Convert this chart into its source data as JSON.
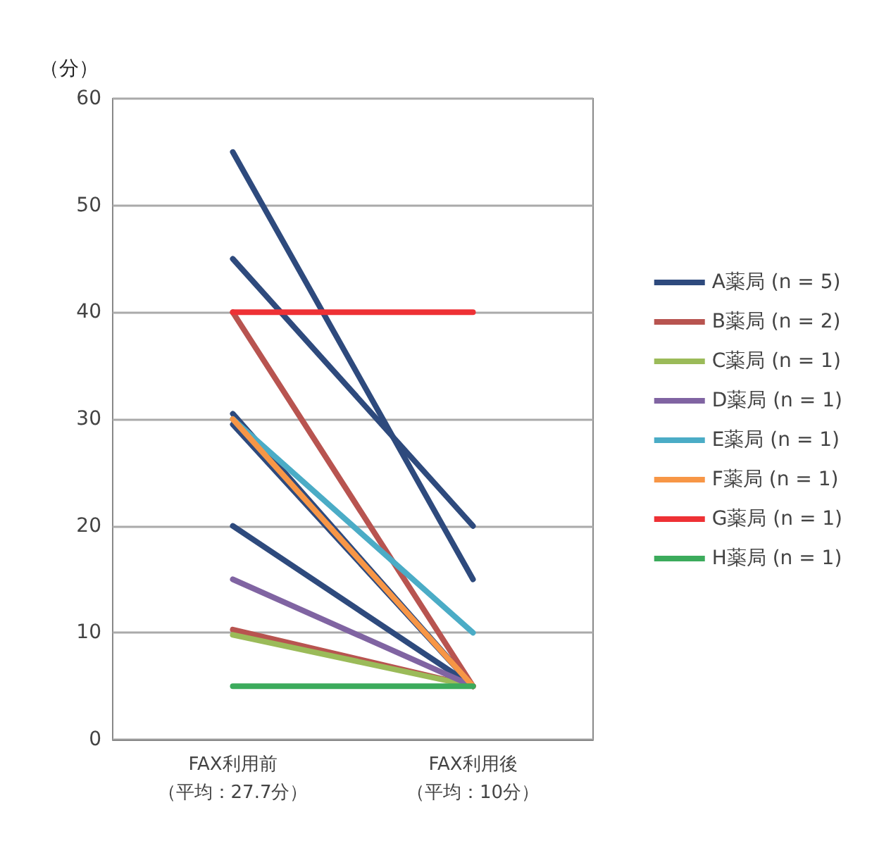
{
  "chart_data": {
    "type": "line",
    "ylabel": "（分）",
    "categories": [
      "FAX利用前（平均：27.7分）",
      "FAX利用後（平均：10分）"
    ],
    "series": [
      {
        "name": "A薬局 (n = 5)",
        "color": "#2e4a7d",
        "values": [
          55,
          15
        ]
      },
      {
        "color": "#2e4a7d",
        "values": [
          45,
          20
        ]
      },
      {
        "color": "#2e4a7d",
        "values": [
          30.5,
          5
        ]
      },
      {
        "color": "#2e4a7d",
        "values": [
          29.5,
          5
        ]
      },
      {
        "color": "#2e4a7d",
        "values": [
          20,
          5
        ]
      },
      {
        "name": "B薬局 (n = 2)",
        "color": "#b85450",
        "values": [
          40,
          5
        ]
      },
      {
        "color": "#b85450",
        "values": [
          10.3,
          5
        ]
      },
      {
        "name": "C薬局 (n = 1)",
        "color": "#9bbb59",
        "values": [
          9.8,
          5
        ]
      },
      {
        "name": "D薬局 (n = 1)",
        "color": "#8064a2",
        "values": [
          15,
          5
        ]
      },
      {
        "name": "E薬局 (n = 1)",
        "color": "#4bacc6",
        "values": [
          30,
          10
        ]
      },
      {
        "name": "F薬局 (n = 1)",
        "color": "#f79646",
        "values": [
          30,
          5
        ]
      },
      {
        "name": "G薬局 (n = 1)",
        "color": "#ee3135",
        "values": [
          40,
          40
        ]
      },
      {
        "name": "H薬局 (n = 1)",
        "color": "#3cab5c",
        "values": [
          5,
          5
        ]
      }
    ],
    "ylim": [
      0,
      60
    ],
    "yticks": [
      0,
      10,
      20,
      30,
      40,
      50,
      60
    ],
    "grid": "y",
    "legend": "right",
    "marker": "none",
    "line_style": "solid"
  }
}
